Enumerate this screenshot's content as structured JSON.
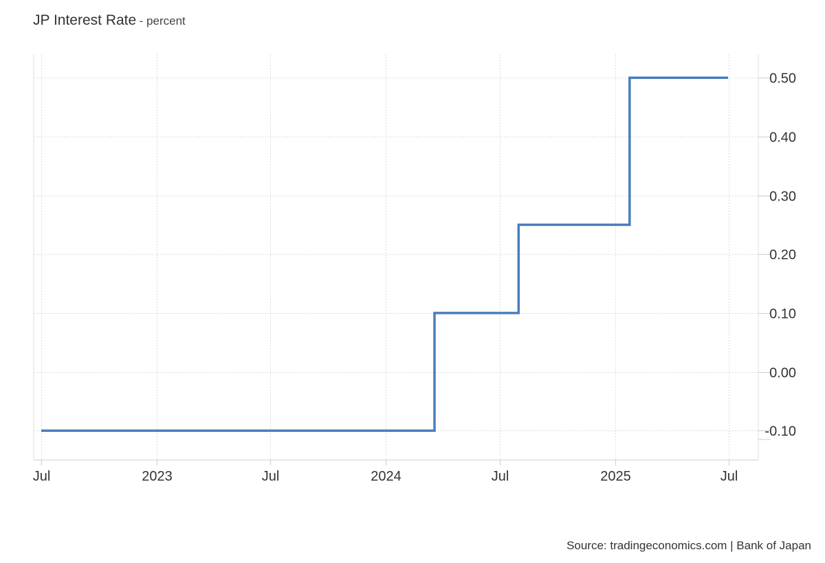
{
  "header": {
    "title": "JP Interest Rate",
    "subtitle": "- percent"
  },
  "footer": {
    "source": "Source: tradingeconomics.com | Bank of Japan"
  },
  "chart_data": {
    "type": "line",
    "line_style": "step",
    "color": "#4a7ebb",
    "x_start": "2022-07-01",
    "x_end": "2025-06-30",
    "ylim": [
      -0.15,
      0.54
    ],
    "series": [
      {
        "points": [
          {
            "date": "2022-07-01",
            "value": -0.1
          },
          {
            "date": "2024-03-19",
            "value": -0.1
          },
          {
            "date": "2024-03-19",
            "value": 0.1
          },
          {
            "date": "2024-07-31",
            "value": 0.1
          },
          {
            "date": "2024-07-31",
            "value": 0.25
          },
          {
            "date": "2025-01-24",
            "value": 0.25
          },
          {
            "date": "2025-01-24",
            "value": 0.5
          },
          {
            "date": "2025-06-30",
            "value": 0.5
          }
        ]
      }
    ],
    "x_ticks": [
      {
        "date": "2022-07-01",
        "label": "Jul"
      },
      {
        "date": "2023-01-01",
        "label": "2023"
      },
      {
        "date": "2023-07-01",
        "label": "Jul"
      },
      {
        "date": "2024-01-01",
        "label": "2024"
      },
      {
        "date": "2024-07-01",
        "label": "Jul"
      },
      {
        "date": "2025-01-01",
        "label": "2025"
      },
      {
        "date": "2025-07-01",
        "label": "Jul"
      }
    ],
    "y_ticks": [
      {
        "value": 0.5,
        "label": "0.50"
      },
      {
        "value": 0.4,
        "label": "0.40"
      },
      {
        "value": 0.3,
        "label": "0.30"
      },
      {
        "value": 0.2,
        "label": "0.20"
      },
      {
        "value": 0.1,
        "label": "0.10"
      },
      {
        "value": 0.0,
        "label": "0.00"
      },
      {
        "value": -0.1,
        "label": "-0.10"
      }
    ],
    "y_axis_position": "right",
    "grid": true
  }
}
